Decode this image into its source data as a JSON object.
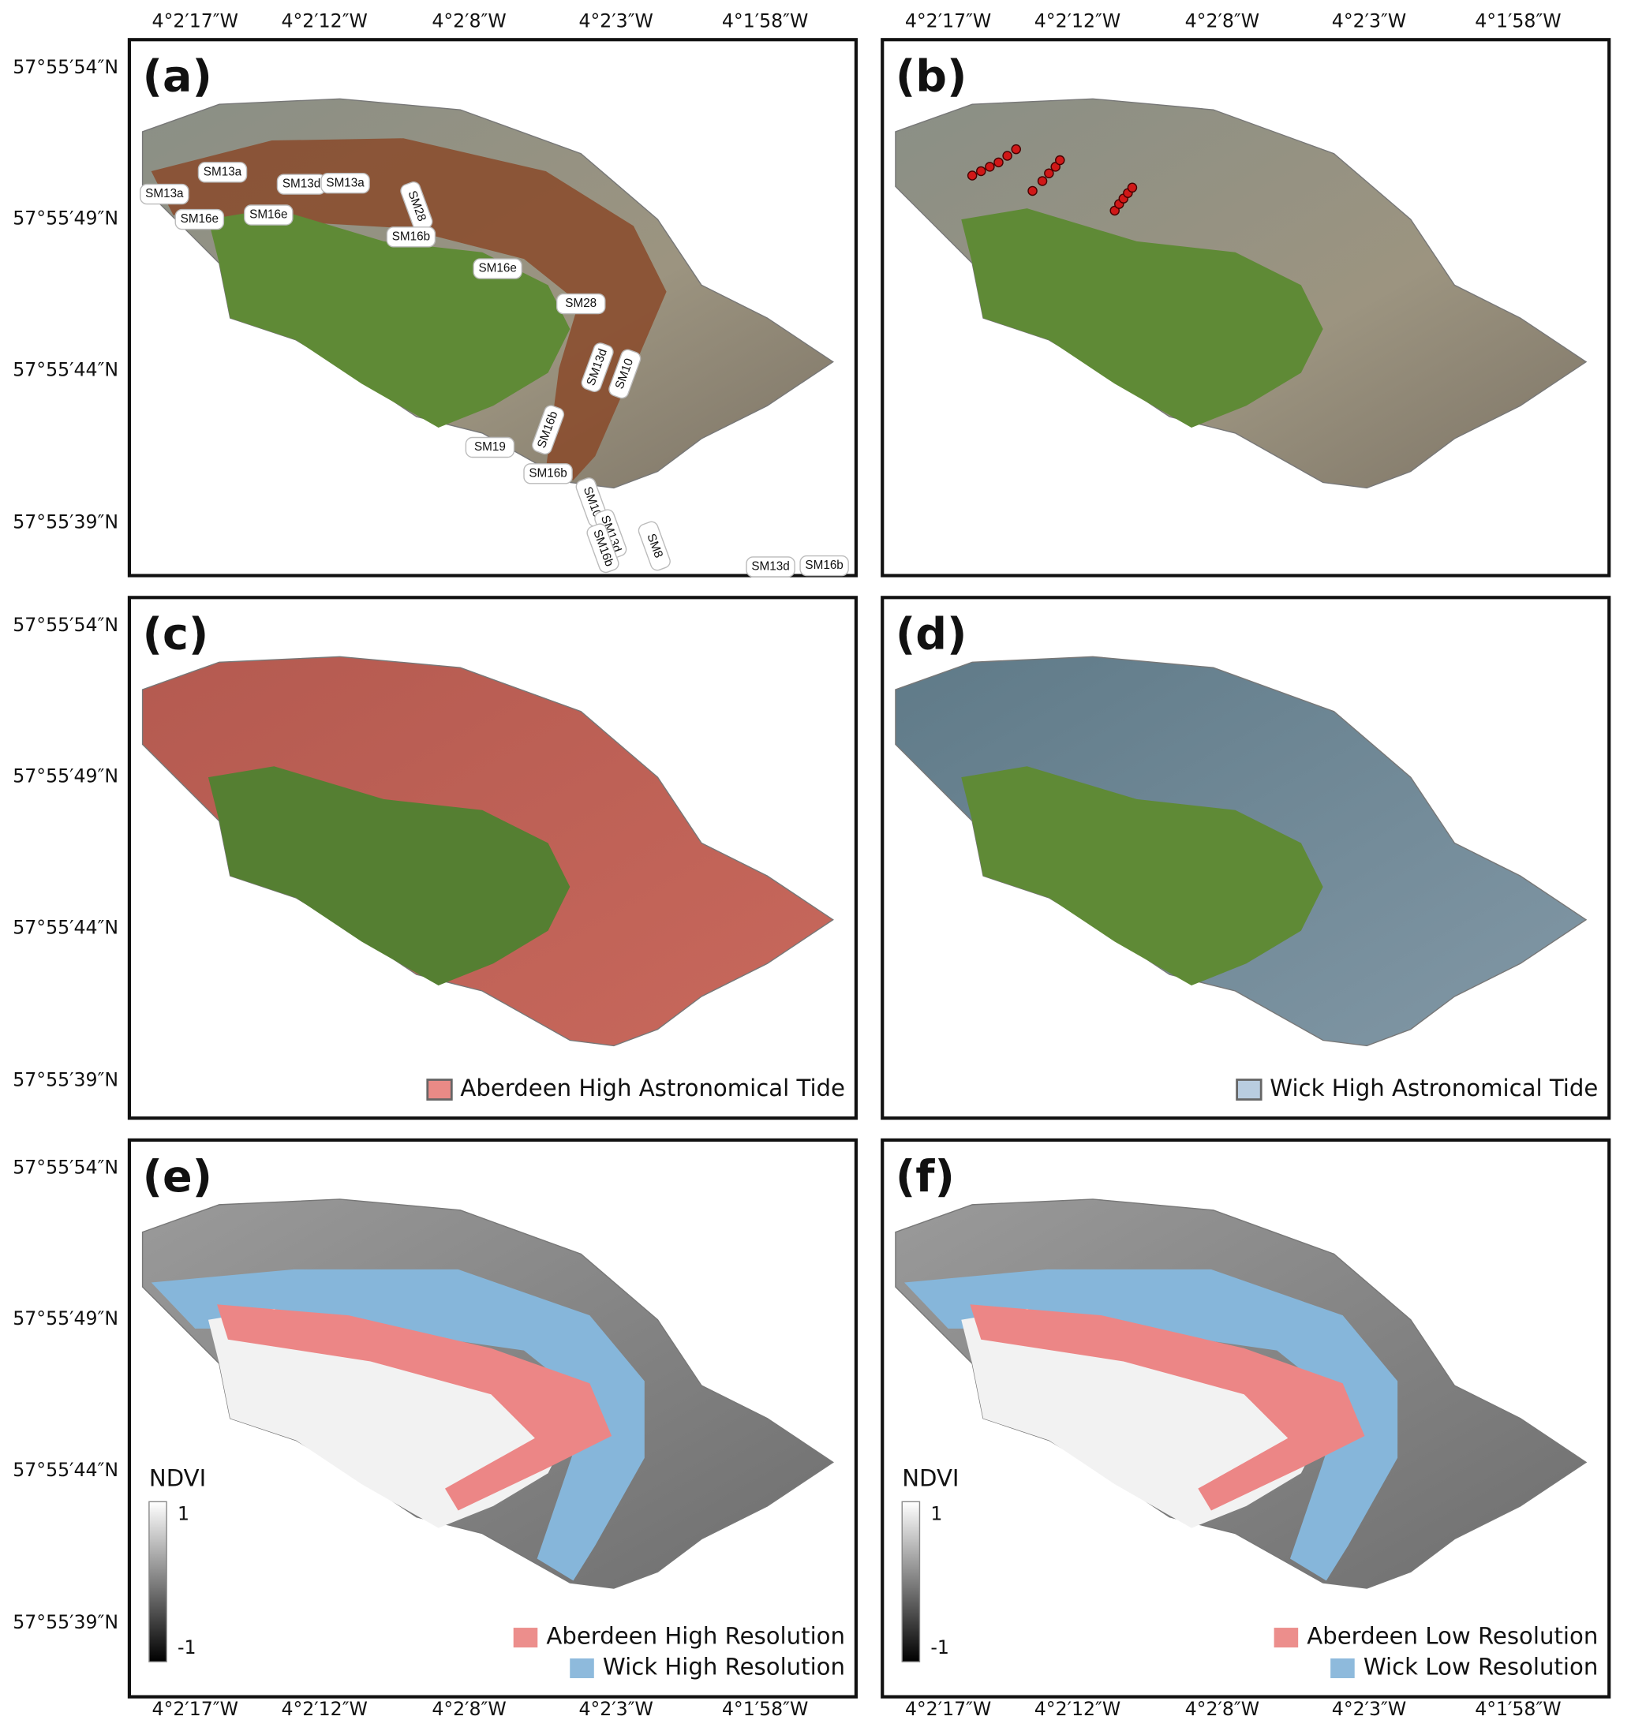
{
  "longitude_labels": [
    "4°2′17″W",
    "4°2′12″W",
    "4°2′8″W",
    "4°2′3″W",
    "4°1′58″W"
  ],
  "latitude_labels": [
    "57°55′54″N",
    "57°55′49″N",
    "57°55′44″N",
    "57°55′39″N"
  ],
  "panels": [
    {
      "label": "(a)",
      "map_labels": [
        "SM13a",
        "SM13a",
        "SM13d",
        "SM13a",
        "SM28",
        "SM16e",
        "SM16e",
        "SM16b",
        "SM16e",
        "SM28",
        "SM13d",
        "SM10",
        "SM16b",
        "SM19",
        "SM16b",
        "SM10",
        "SM13d",
        "SM16b",
        "SM8",
        "SM13d",
        "SM16b"
      ]
    },
    {
      "label": "(b)"
    },
    {
      "label": "(c)",
      "legend": [
        "Aberdeen High Astronomical Tide"
      ]
    },
    {
      "label": "(d)",
      "legend": [
        "Wick High Astronomical Tide"
      ]
    },
    {
      "label": "(e)",
      "legend": [
        "Aberdeen High Resolution",
        "Wick High Resolution"
      ],
      "ndvi": {
        "title": "NDVI",
        "max": 1,
        "min": -1
      }
    },
    {
      "label": "(f)",
      "legend": [
        "Aberdeen Low Resolution",
        "Wick Low Resolution"
      ],
      "ndvi": {
        "title": "NDVI",
        "max": 1,
        "min": -1
      }
    }
  ]
}
